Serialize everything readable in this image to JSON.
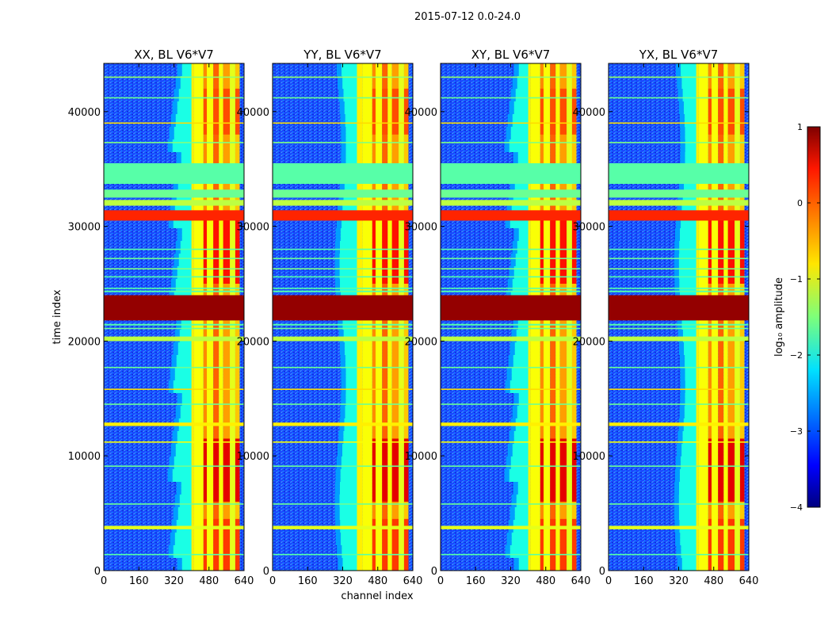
{
  "chart_data": {
    "type": "heatmap",
    "suptitle": "2015-07-12 0.0-24.0",
    "xlabel": "channel index",
    "ylabel": "time index",
    "x_ticks": [
      "0",
      "160",
      "320",
      "480",
      "640"
    ],
    "y_ticks": [
      "0",
      "10000",
      "20000",
      "30000",
      "40000"
    ],
    "xlim": [
      0,
      640
    ],
    "ylim": [
      0,
      44200
    ],
    "panels": [
      {
        "title": "XX, BL V6*V7",
        "band_start": 400,
        "transition": "ragged"
      },
      {
        "title": "YY, BL V6*V7",
        "band_start": 385,
        "transition": "smooth"
      },
      {
        "title": "XY, BL V6*V7",
        "band_start": 400,
        "transition": "ragged"
      },
      {
        "title": "YX, BL V6*V7",
        "band_start": 400,
        "transition": "smooth"
      }
    ],
    "channel_bands": [
      {
        "from": 410,
        "to": 455,
        "level": -0.9
      },
      {
        "from": 455,
        "to": 470,
        "level": -0.3
      },
      {
        "from": 470,
        "to": 500,
        "level": -0.9
      },
      {
        "from": 500,
        "to": 525,
        "level": -0.1
      },
      {
        "from": 525,
        "to": 545,
        "level": -0.9
      },
      {
        "from": 545,
        "to": 575,
        "level": -0.4
      },
      {
        "from": 575,
        "to": 600,
        "level": -1.0
      },
      {
        "from": 600,
        "to": 620,
        "level": -0.6
      }
    ],
    "band_hotspots": [
      {
        "t0": 0,
        "t1": 4500,
        "level": -0.2
      },
      {
        "t0": 6000,
        "t1": 11500,
        "level": 0.2
      },
      {
        "t0": 25000,
        "t1": 31000,
        "level": 0.0
      },
      {
        "t0": 38000,
        "t1": 42000,
        "level": -0.3
      }
    ],
    "rows_full_saturation": [
      {
        "t0": 21800,
        "t1": 24000,
        "level": 0.9
      }
    ],
    "rows_bright": [
      {
        "t0": 30500,
        "t1": 31400,
        "level": 0.2
      },
      {
        "t0": 31800,
        "t1": 32300,
        "level": -1.2
      },
      {
        "t0": 32500,
        "t1": 33200,
        "level": -1.6
      },
      {
        "t0": 33700,
        "t1": 35500,
        "level": -1.7
      },
      {
        "t0": 20000,
        "t1": 20400,
        "level": -1.2
      },
      {
        "t0": 12600,
        "t1": 12900,
        "level": -0.8
      },
      {
        "t0": 3600,
        "t1": 3900,
        "level": -1.0
      }
    ],
    "rows_lines": [
      {
        "t": 43000,
        "level": -1.4
      },
      {
        "t": 41200,
        "level": -1.6
      },
      {
        "t": 39000,
        "level": -0.7
      },
      {
        "t": 37300,
        "level": -1.5
      },
      {
        "t": 28000,
        "level": -1.7
      },
      {
        "t": 27200,
        "level": -1.6
      },
      {
        "t": 26300,
        "level": -1.5
      },
      {
        "t": 25600,
        "level": -1.7
      },
      {
        "t": 24600,
        "level": -1.7
      },
      {
        "t": 21100,
        "level": -1.6
      },
      {
        "t": 17700,
        "level": -1.6
      },
      {
        "t": 15800,
        "level": -0.7
      },
      {
        "t": 14500,
        "level": -1.6
      },
      {
        "t": 11200,
        "level": -0.9
      },
      {
        "t": 9100,
        "level": -1.6
      },
      {
        "t": 5800,
        "level": -1.6
      },
      {
        "t": 1400,
        "level": -1.7
      }
    ],
    "colorbar": {
      "label": "log₁₀ amplitude",
      "range": [
        -4,
        1
      ],
      "ticks": [
        "1",
        "0",
        "−1",
        "−2",
        "−3",
        "−4"
      ],
      "colormap": "jet"
    }
  }
}
